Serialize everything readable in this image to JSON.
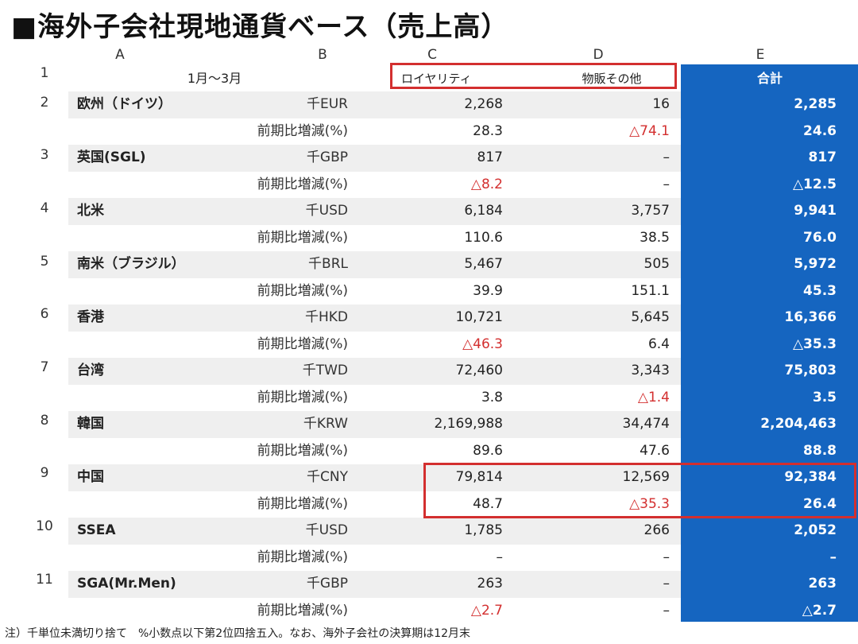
{
  "title": "■海外子会社現地通貨ベース（売上高）",
  "column_letters": [
    "A",
    "B",
    "C",
    "D",
    "E"
  ],
  "header": {
    "period": "1月～3月",
    "col_c": "ロイヤリティ",
    "col_d": "物販その他",
    "col_e": "合計"
  },
  "rows": [
    {
      "num": "1"
    },
    {
      "num": "2",
      "name": "欧州（ドイツ）",
      "unit": "千EUR",
      "c": "2,268",
      "d": "16",
      "e": "2,285",
      "pct_label": "前期比増減(%)",
      "pc": "28.3",
      "pd": "△74.1",
      "pe": "24.6"
    },
    {
      "num": "3",
      "name": "英国(SGL)",
      "unit": "千GBP",
      "c": "817",
      "d": "–",
      "e": "817",
      "pct_label": "前期比増減(%)",
      "pc": "△8.2",
      "pd": "–",
      "pe": "△12.5"
    },
    {
      "num": "4",
      "name": "北米",
      "unit": "千USD",
      "c": "6,184",
      "d": "3,757",
      "e": "9,941",
      "pct_label": "前期比増減(%)",
      "pc": "110.6",
      "pd": "38.5",
      "pe": "76.0"
    },
    {
      "num": "5",
      "name": "南米（ブラジル）",
      "unit": "千BRL",
      "c": "5,467",
      "d": "505",
      "e": "5,972",
      "pct_label": "前期比増減(%)",
      "pc": "39.9",
      "pd": "151.1",
      "pe": "45.3"
    },
    {
      "num": "6",
      "name": "香港",
      "unit": "千HKD",
      "c": "10,721",
      "d": "5,645",
      "e": "16,366",
      "pct_label": "前期比増減(%)",
      "pc": "△46.3",
      "pd": "6.4",
      "pe": "△35.3"
    },
    {
      "num": "7",
      "name": "台湾",
      "unit": "千TWD",
      "c": "72,460",
      "d": "3,343",
      "e": "75,803",
      "pct_label": "前期比増減(%)",
      "pc": "3.8",
      "pd": "△1.4",
      "pe": "3.5"
    },
    {
      "num": "8",
      "name": "韓国",
      "unit": "千KRW",
      "c": "2,169,988",
      "d": "34,474",
      "e": "2,204,463",
      "pct_label": "前期比増減(%)",
      "pc": "89.6",
      "pd": "47.6",
      "pe": "88.8"
    },
    {
      "num": "9",
      "name": "中国",
      "unit": "千CNY",
      "c": "79,814",
      "d": "12,569",
      "e": "92,384",
      "pct_label": "前期比増減(%)",
      "pc": "48.7",
      "pd": "△35.3",
      "pe": "26.4"
    },
    {
      "num": "10",
      "name": "SSEA",
      "unit": "千USD",
      "c": "1,785",
      "d": "266",
      "e": "2,052",
      "pct_label": "前期比増減(%)",
      "pc": "–",
      "pd": "–",
      "pe": "–"
    },
    {
      "num": "11",
      "name": "SGA(Mr.Men)",
      "unit": "千GBP",
      "c": "263",
      "d": "–",
      "e": "263",
      "pct_label": "前期比増減(%)",
      "pc": "△2.7",
      "pd": "–",
      "pe": "△2.7"
    }
  ],
  "footnote": "注）千単位未満切り捨て　%小数点以下第2位四捨五入。なお、海外子会社の決算期は12月末",
  "colors": {
    "total_bg": "#1565c0",
    "negative": "#d32f2f",
    "highlight_box": "#d32f2f",
    "shade": "#efefef"
  }
}
